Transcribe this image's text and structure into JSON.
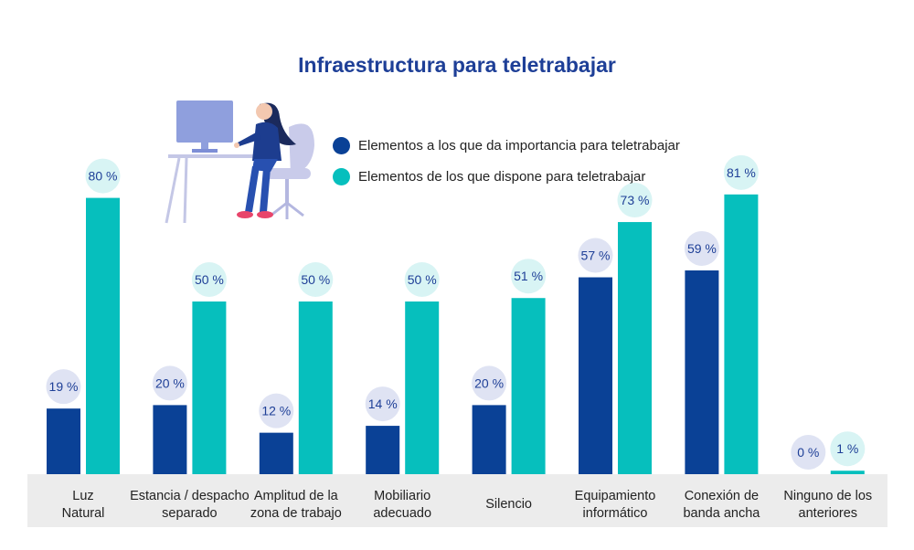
{
  "colors": {
    "importance": "#0a4196",
    "available": "#06bfbd",
    "title": "#1e3f97",
    "label_circle_importance": "#dfe3f3",
    "label_circle_available": "#d8f4f4",
    "label_text": "#1e3f97",
    "category_band": "#ececec"
  },
  "chart_data": {
    "type": "bar",
    "title": "Infraestructura para teletrabajar",
    "categories": [
      [
        "Luz",
        "Natural"
      ],
      [
        "Estancia / despacho",
        "separado"
      ],
      [
        "Amplitud de la",
        "zona de trabajo"
      ],
      [
        "Mobiliario",
        "adecuado"
      ],
      [
        "Silencio"
      ],
      [
        "Equipamiento",
        "informático"
      ],
      [
        "Conexión de",
        "banda ancha"
      ],
      [
        "Ninguno de los",
        "anteriores"
      ]
    ],
    "series": [
      {
        "name": "Elementos a los que da importancia para teletrabajar",
        "values": [
          19,
          20,
          12,
          14,
          20,
          57,
          59,
          0
        ]
      },
      {
        "name": "Elementos de los que dispone para teletrabajar",
        "values": [
          80,
          50,
          50,
          50,
          51,
          73,
          81,
          1
        ]
      }
    ],
    "value_suffix": " %",
    "ylim": [
      0,
      100
    ],
    "grid": false,
    "legend_position": "top-center"
  }
}
